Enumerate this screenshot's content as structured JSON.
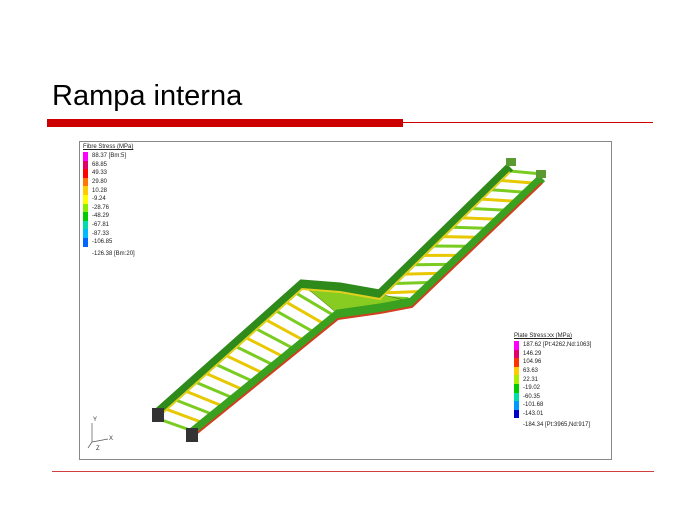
{
  "slide": {
    "title": "Rampa interna"
  },
  "figure": {
    "fibre_legend": {
      "title": "Fibre Stress (MPa)",
      "values": [
        "88.37 [Bm:5]",
        "68.85",
        "49.33",
        "29.80",
        "10.28",
        "-9.24",
        "-28.76",
        "-48.29",
        "-67.81",
        "-87.33",
        "-106.85"
      ],
      "min": "-126.38 [Bm:20]",
      "colors": [
        "#ff00ff",
        "#e0006a",
        "#ff0000",
        "#ff7700",
        "#ffcc00",
        "#ffff00",
        "#88ee00",
        "#00cc00",
        "#00ddaa",
        "#00bbff",
        "#0066ff",
        "#0000cc"
      ]
    },
    "plate_legend": {
      "title": "Plate Stress:xx (MPa)",
      "values": [
        "187.62 [Pt:4262,Nd:1063]",
        "146.29",
        "104.96",
        "63.63",
        "22.31",
        "-19.02",
        "-60.35",
        "-101.68",
        "-143.01"
      ],
      "min": "-184.34 [Pt:3965,Nd:917]",
      "colors": [
        "#ff00ff",
        "#e0006a",
        "#ff3300",
        "#ffcc00",
        "#aaee00",
        "#00cc00",
        "#00ddaa",
        "#0099ff",
        "#0000cc"
      ]
    },
    "axes": {
      "y": "Y",
      "x": "X",
      "z": "Z"
    }
  }
}
